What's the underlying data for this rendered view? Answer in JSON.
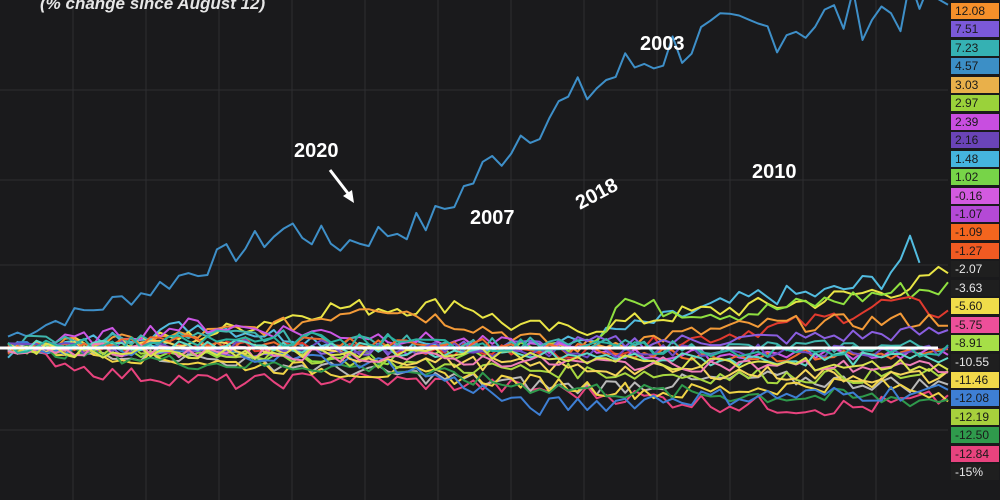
{
  "chart_data": {
    "type": "line",
    "subtitle": "(% change since August 12)",
    "ylim": [
      -15,
      15
    ],
    "x_points": 100,
    "grid": true,
    "baseline": 0,
    "annotations": [
      {
        "text": "2003",
        "color": "#ffffff"
      },
      {
        "text": "2010",
        "color": "#ffffff"
      },
      {
        "text": "2007",
        "color": "#ffffff"
      },
      {
        "text": "2018",
        "color": "#ffffff"
      },
      {
        "text": "2020",
        "color": "#ffffff"
      }
    ],
    "right_axis_labels": [
      {
        "text": "12.08",
        "bg": "#f58f2a",
        "fg": "#1a1a1a"
      },
      {
        "text": "7.51",
        "bg": "#7b59d9",
        "fg": "#1a1a1a"
      },
      {
        "text": "7.23",
        "bg": "#35b1b3",
        "fg": "#1a1a1a"
      },
      {
        "text": "4.57",
        "bg": "#3c8fc6",
        "fg": "#1a1a1a"
      },
      {
        "text": "3.03",
        "bg": "#e9b04a",
        "fg": "#1a1a1a"
      },
      {
        "text": "2.97",
        "bg": "#9ad23a",
        "fg": "#1a1a1a"
      },
      {
        "text": "2.39",
        "bg": "#c84ee0",
        "fg": "#1a1a1a"
      },
      {
        "text": "2.16",
        "bg": "#6a44b8",
        "fg": "#1a1a1a"
      },
      {
        "text": "1.48",
        "bg": "#45b4de",
        "fg": "#1a1a1a"
      },
      {
        "text": "1.02",
        "bg": "#77d448",
        "fg": "#1a1a1a"
      },
      {
        "text": "-0.16",
        "bg": "#d35ae0",
        "fg": "#1a1a1a"
      },
      {
        "text": "-1.07",
        "bg": "#b449d6",
        "fg": "#1a1a1a"
      },
      {
        "text": "-1.09",
        "bg": "#f3651e",
        "fg": "#1a1a1a"
      },
      {
        "text": "-1.27",
        "bg": "#f05a22",
        "fg": "#1a1a1a"
      },
      {
        "text": "-2.07",
        "bg": "#1f1f1f",
        "fg": "#e8e8e8"
      },
      {
        "text": "-3.63",
        "bg": "#1f1f1f",
        "fg": "#e8e8e8"
      },
      {
        "text": "-5.60",
        "bg": "#f0dd4a",
        "fg": "#1a1a1a"
      },
      {
        "text": "-5.75",
        "bg": "#ed4f9a",
        "fg": "#1a1a1a"
      },
      {
        "text": "-8.91",
        "bg": "#a6df47",
        "fg": "#1a1a1a"
      },
      {
        "text": "-10.55",
        "bg": "#1f1f1f",
        "fg": "#e8e8e8"
      },
      {
        "text": "-11.46",
        "bg": "#f1d84a",
        "fg": "#1a1a1a"
      },
      {
        "text": "-12.08",
        "bg": "#3e7fd4",
        "fg": "#1a1a1a"
      },
      {
        "text": "-12.19",
        "bg": "#a7d03c",
        "fg": "#1a1a1a"
      },
      {
        "text": "-12.50",
        "bg": "#2f9a4c",
        "fg": "#1a1a1a"
      },
      {
        "text": "-12.84",
        "bg": "#e8437e",
        "fg": "#1a1a1a"
      },
      {
        "text": "-15%",
        "bg": "#1f1f1f",
        "fg": "#e8e8e8"
      }
    ],
    "series": [
      {
        "color": "#3e8fc8",
        "waypoints": [
          [
            0,
            1
          ],
          [
            15,
            5
          ],
          [
            30,
            10.5
          ],
          [
            35,
            9
          ],
          [
            45,
            11
          ],
          [
            50,
            15
          ],
          [
            55,
            19
          ],
          [
            65,
            24
          ],
          [
            72,
            26.5
          ],
          [
            90,
            29
          ],
          [
            100,
            30
          ]
        ]
      },
      {
        "color": "#52bce0",
        "waypoints": [
          [
            0,
            -0.5
          ],
          [
            20,
            2
          ],
          [
            40,
            0
          ],
          [
            60,
            0.5
          ],
          [
            80,
            4.5
          ],
          [
            87,
            4.7
          ],
          [
            93,
            6
          ],
          [
            96,
            8.7
          ],
          [
            97.5,
            6.2
          ]
        ]
      },
      {
        "color": "#e9e545",
        "waypoints": [
          [
            0,
            0
          ],
          [
            20,
            1
          ],
          [
            34,
            3.5
          ],
          [
            45,
            3.6
          ],
          [
            48,
            4.1
          ],
          [
            53,
            2
          ],
          [
            60,
            1.5
          ],
          [
            72,
            3
          ],
          [
            85,
            4
          ],
          [
            97,
            5.5
          ],
          [
            100,
            6.6
          ]
        ]
      },
      {
        "color": "#8fe040",
        "waypoints": [
          [
            0,
            0
          ],
          [
            40,
            -1
          ],
          [
            60,
            0.3
          ],
          [
            63,
            1
          ],
          [
            65,
            4.5
          ],
          [
            68,
            3.5
          ],
          [
            78,
            3
          ],
          [
            87,
            4
          ],
          [
            95,
            5
          ],
          [
            100,
            5.2
          ]
        ]
      },
      {
        "color": "#e13a2e",
        "waypoints": [
          [
            0,
            0
          ],
          [
            40,
            0
          ],
          [
            60,
            -0.5
          ],
          [
            75,
            1
          ],
          [
            87,
            2.5
          ],
          [
            94,
            4
          ],
          [
            100,
            3
          ]
        ]
      },
      {
        "color": "#f39a38",
        "waypoints": [
          [
            0,
            0
          ],
          [
            15,
            0.7
          ],
          [
            30,
            2
          ],
          [
            36,
            3.3
          ],
          [
            38,
            4
          ],
          [
            60,
            0
          ],
          [
            80,
            2
          ],
          [
            100,
            2.5
          ]
        ]
      },
      {
        "color": "#8a5ee0",
        "waypoints": [
          [
            0,
            0
          ],
          [
            30,
            -0.5
          ],
          [
            60,
            0.4
          ],
          [
            85,
            0.9
          ],
          [
            100,
            1.4
          ]
        ]
      },
      {
        "color": "#cc57e4",
        "waypoints": [
          [
            0,
            0
          ],
          [
            20,
            2
          ],
          [
            40,
            1
          ],
          [
            55,
            0.2
          ],
          [
            70,
            -0.8
          ],
          [
            85,
            -0.5
          ],
          [
            100,
            -0.6
          ]
        ]
      },
      {
        "color": "#3fb6ae",
        "waypoints": [
          [
            0,
            0.5
          ],
          [
            25,
            1
          ],
          [
            50,
            0.4
          ],
          [
            75,
            0
          ],
          [
            100,
            0.2
          ]
        ]
      },
      {
        "color": "#e8437e",
        "waypoints": [
          [
            0,
            0
          ],
          [
            10,
            -2.5
          ],
          [
            25,
            -3.5
          ],
          [
            35,
            -3
          ],
          [
            55,
            -4
          ],
          [
            75,
            -5.5
          ],
          [
            90,
            -6
          ],
          [
            100,
            -5
          ]
        ]
      },
      {
        "color": "#b9b9b9",
        "waypoints": [
          [
            0,
            0
          ],
          [
            20,
            -1
          ],
          [
            40,
            -2.5
          ],
          [
            60,
            -4
          ],
          [
            80,
            -3
          ],
          [
            100,
            -3.8
          ]
        ]
      },
      {
        "color": "#f0d447",
        "waypoints": [
          [
            0,
            0
          ],
          [
            15,
            -1
          ],
          [
            30,
            -2
          ],
          [
            50,
            -3
          ],
          [
            70,
            -4.5
          ],
          [
            90,
            -3.5
          ],
          [
            100,
            -4.5
          ]
        ]
      },
      {
        "color": "#2f9a4c",
        "waypoints": [
          [
            0,
            0
          ],
          [
            20,
            -1.5
          ],
          [
            40,
            -2
          ],
          [
            55,
            -3.8
          ],
          [
            70,
            -4.5
          ],
          [
            90,
            -5
          ],
          [
            100,
            -5.2
          ]
        ]
      },
      {
        "color": "#a8d840",
        "waypoints": [
          [
            0,
            0
          ],
          [
            25,
            -0.5
          ],
          [
            50,
            -2
          ],
          [
            75,
            -2.8
          ],
          [
            100,
            -2.8
          ]
        ]
      },
      {
        "color": "#3e7fd4",
        "waypoints": [
          [
            0,
            0
          ],
          [
            20,
            -0.4
          ],
          [
            40,
            -1.5
          ],
          [
            50,
            -4
          ],
          [
            55,
            -6
          ],
          [
            70,
            -5
          ],
          [
            90,
            -4.6
          ],
          [
            100,
            -4.3
          ]
        ]
      },
      {
        "color": "#f5d65a",
        "waypoints": [
          [
            0,
            0
          ],
          [
            20,
            0.2
          ],
          [
            40,
            -1
          ],
          [
            60,
            -2
          ],
          [
            80,
            -2.5
          ],
          [
            100,
            -3
          ]
        ]
      },
      {
        "color": "#ef6a2c",
        "waypoints": [
          [
            0,
            0
          ],
          [
            20,
            0.5
          ],
          [
            40,
            0.6
          ],
          [
            60,
            -0.2
          ],
          [
            80,
            -0.8
          ],
          [
            100,
            -0.5
          ]
        ]
      },
      {
        "color": "#6f4bc4",
        "waypoints": [
          [
            0,
            0
          ],
          [
            30,
            0.2
          ],
          [
            60,
            -0.4
          ],
          [
            100,
            -0.2
          ]
        ]
      },
      {
        "color": "#5ed8c6",
        "waypoints": [
          [
            0,
            0
          ],
          [
            25,
            0.3
          ],
          [
            50,
            -0.6
          ],
          [
            75,
            -1.2
          ],
          [
            100,
            -1
          ]
        ]
      },
      {
        "color": "#f07fb8",
        "waypoints": [
          [
            0,
            0
          ],
          [
            30,
            -0.6
          ],
          [
            60,
            -1.5
          ],
          [
            100,
            -2
          ]
        ]
      },
      {
        "color": "#d9e24f",
        "waypoints": [
          [
            0,
            0
          ],
          [
            20,
            -0.8
          ],
          [
            45,
            -0.2
          ],
          [
            70,
            -1.5
          ],
          [
            100,
            -1.8
          ]
        ]
      },
      {
        "color": "#2bb3a0",
        "waypoints": [
          [
            0,
            0
          ],
          [
            30,
            0.8
          ],
          [
            55,
            0.2
          ],
          [
            80,
            -0.4
          ],
          [
            100,
            -0.3
          ]
        ]
      }
    ],
    "white_baseline": true
  }
}
